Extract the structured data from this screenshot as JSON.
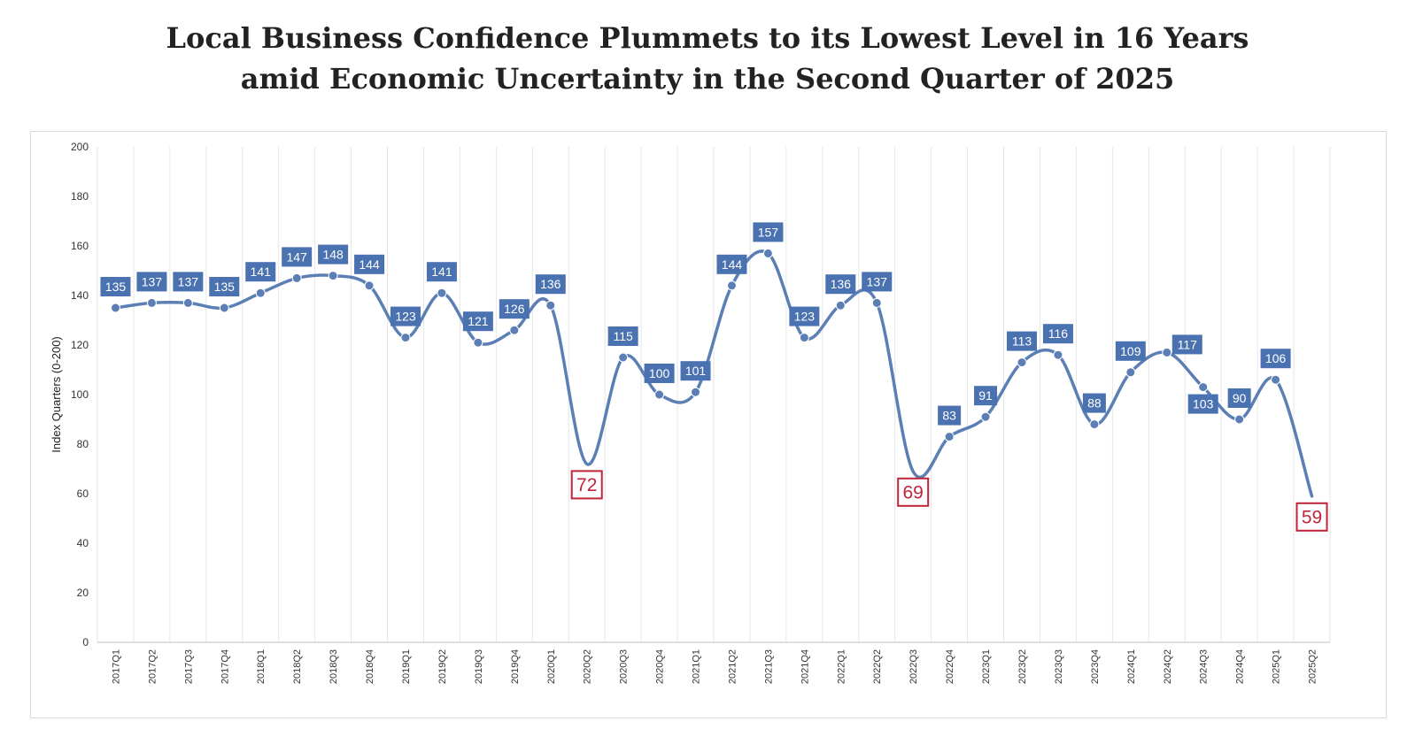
{
  "title_lines": [
    "Local Business Confidence Plummets to its Lowest Level in 16 Years",
    "amid Economic Uncertainty in the Second Quarter of 2025"
  ],
  "colors": {
    "line": "#5B7FB5",
    "label_bg": "#4A72B0",
    "label_text": "#ffffff",
    "highlight": "#C0243A",
    "grid": "#e6e6e6"
  },
  "chart_data": {
    "type": "line",
    "title": "Local Business Confidence Plummets to its Lowest Level in 16 Years amid Economic Uncertainty in the Second Quarter of 2025",
    "xlabel": "",
    "ylabel": "Index Quarters (0-200)",
    "ylim": [
      0,
      200
    ],
    "yticks": [
      0,
      20,
      40,
      60,
      80,
      100,
      120,
      140,
      160,
      180,
      200
    ],
    "grid": "vertical",
    "smooth": true,
    "categories": [
      "2017Q1",
      "2017Q2",
      "2017Q3",
      "2017Q4",
      "2018Q1",
      "2018Q2",
      "2018Q3",
      "2018Q4",
      "2019Q1",
      "2019Q2",
      "2019Q3",
      "2019Q4",
      "2020Q1",
      "2020Q2",
      "2020Q3",
      "2020Q4",
      "2021Q1",
      "2021Q2",
      "2021Q3",
      "2021Q4",
      "2022Q1",
      "2022Q2",
      "2022Q3",
      "2022Q4",
      "2023Q1",
      "2023Q2",
      "2023Q3",
      "2023Q4",
      "2024Q1",
      "2024Q2",
      "2024Q3",
      "2024Q4",
      "2025Q1",
      "2025Q2"
    ],
    "values": [
      135,
      137,
      137,
      135,
      141,
      147,
      148,
      144,
      123,
      141,
      121,
      126,
      136,
      72,
      115,
      100,
      101,
      144,
      157,
      123,
      136,
      137,
      69,
      83,
      91,
      113,
      116,
      88,
      109,
      117,
      103,
      90,
      106,
      59
    ],
    "highlighted": [
      "2020Q2",
      "2022Q3",
      "2025Q2"
    ],
    "label_positions": [
      "above",
      "above",
      "above",
      "above",
      "above",
      "above",
      "above",
      "above",
      "above",
      "above",
      "above",
      "above",
      "above",
      "below",
      "above",
      "above",
      "above",
      "above",
      "above",
      "above",
      "above",
      "above",
      "below",
      "above",
      "above",
      "above",
      "above",
      "above",
      "above",
      "right",
      "below",
      "above",
      "above",
      "below"
    ]
  }
}
